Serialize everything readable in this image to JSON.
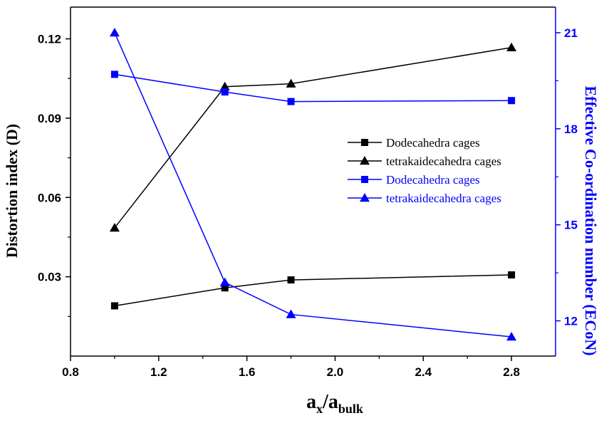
{
  "chart_data": {
    "type": "line",
    "xlabel": {
      "main": "a",
      "sub1": "x",
      "sep": "/a",
      "sub2": "bulk"
    },
    "ylabel_left": "Distortion index (D)",
    "ylabel_right": "Effective Co-ordination number (ECoN)",
    "xlim": [
      0.8,
      3.0
    ],
    "ylim_left": [
      0.0,
      0.132
    ],
    "ylim_right": [
      10.9,
      21.8
    ],
    "x_ticks": [
      0.8,
      1.2,
      1.6,
      2.0,
      2.4,
      2.8
    ],
    "x_tick_labels": [
      "0.8",
      "1.2",
      "1.6",
      "2.0",
      "2.4",
      "2.8"
    ],
    "y_left_ticks": [
      0.03,
      0.06,
      0.09,
      0.12
    ],
    "y_left_tick_labels": [
      "0.03",
      "0.06",
      "0.09",
      "0.12"
    ],
    "y_right_ticks": [
      12,
      15,
      18,
      21
    ],
    "y_right_tick_labels": [
      "12",
      "15",
      "18",
      "21"
    ],
    "grid": false,
    "legend_position": "center-right",
    "series": [
      {
        "name": "Dodecahedra cages",
        "axis": "left",
        "color": "#000000",
        "marker": "square",
        "x": [
          1.0,
          1.5,
          1.8,
          2.8
        ],
        "values": [
          0.019,
          0.0258,
          0.0288,
          0.0307
        ]
      },
      {
        "name": "tetrakaidecahedra cages",
        "axis": "left",
        "color": "#000000",
        "marker": "triangle",
        "x": [
          1.0,
          1.5,
          1.8,
          2.8
        ],
        "values": [
          0.0485,
          0.1019,
          0.103,
          0.1167
        ]
      },
      {
        "name": "Dodecahedra cages",
        "axis": "right",
        "color": "#0000ff",
        "marker": "square",
        "x": [
          1.0,
          1.5,
          1.8,
          2.8
        ],
        "values": [
          19.7,
          19.15,
          18.85,
          18.88
        ]
      },
      {
        "name": "tetrakaidecahedra cages",
        "axis": "right",
        "color": "#0000ff",
        "marker": "triangle",
        "x": [
          1.0,
          1.5,
          1.8,
          2.8
        ],
        "values": [
          21.0,
          13.2,
          12.2,
          11.5
        ]
      }
    ],
    "colors": {
      "left_axis": "#000000",
      "right_axis": "#0000ff"
    }
  }
}
